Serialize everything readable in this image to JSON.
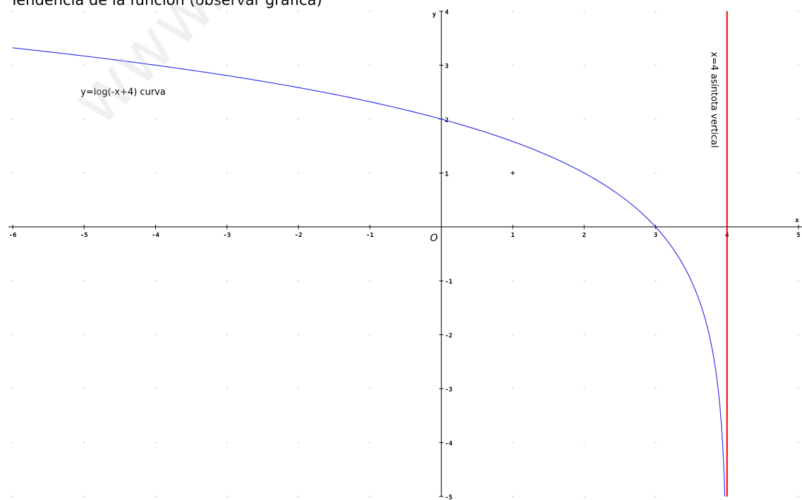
{
  "page": {
    "heading": "Tendencia de la función (observar gráfica)",
    "watermark": "www.yo"
  },
  "chart_data": {
    "type": "line",
    "title": "",
    "xlabel": "x",
    "ylabel": "y",
    "origin_label": "O",
    "xlim": [
      -6,
      5
    ],
    "ylim": [
      -5,
      4
    ],
    "x_ticks": [
      -6,
      -5,
      -4,
      -3,
      -2,
      -1,
      1,
      2,
      3,
      4,
      5
    ],
    "y_ticks": [
      -5,
      -4,
      -3,
      -2,
      -1,
      1,
      2,
      3,
      4
    ],
    "grid": "dotted",
    "colors": {
      "curve": "#3333ee",
      "asymptote": "#ee0000",
      "axes": "#000000",
      "grid": "#9a9a9a"
    },
    "series": [
      {
        "name": "y=log(-x+4) curva",
        "function": "y = log2(4 - x)",
        "x": [
          -6,
          -5,
          -4,
          -3,
          -2,
          -1,
          0,
          1,
          2,
          3,
          3.5,
          3.75,
          3.875,
          3.9375,
          3.96875,
          3.984375
        ],
        "y": [
          3.32,
          3.17,
          3.0,
          2.81,
          2.58,
          2.32,
          2.0,
          1.58,
          1.0,
          0.0,
          -1.0,
          -2.0,
          -3.0,
          -4.0,
          -5.0,
          -6.0
        ]
      }
    ],
    "asymptote": {
      "x": 4,
      "label": "x=4 asíntota vertical"
    },
    "annotations": [
      {
        "text": "y=log(-x+4) curva",
        "x": -5.05,
        "y": 2.45
      },
      {
        "text": "x=4 asíntota vertical",
        "x": 3.8,
        "y": 3.25,
        "rotation": 90
      }
    ],
    "marker": {
      "x": 1,
      "y": 1,
      "symbol": "+"
    }
  }
}
